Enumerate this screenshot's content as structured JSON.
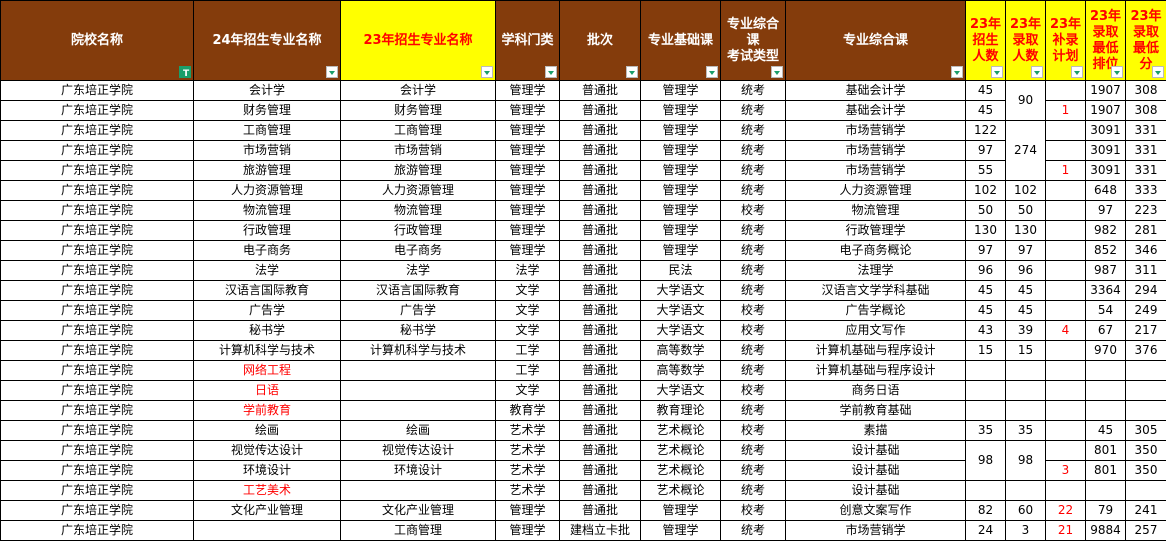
{
  "colors": {
    "header_brown": "#843C0C",
    "header_yellow": "#FFFF00",
    "highlight_red": "#FF0000",
    "filter_green": "#1A9E6A"
  },
  "headers": [
    {
      "label": "院校名称",
      "yellow": false,
      "filter_active": true
    },
    {
      "label": "24年招生专业名称",
      "yellow": false
    },
    {
      "label": "23年招生专业名称",
      "yellow": true
    },
    {
      "label": "学科门类",
      "yellow": false
    },
    {
      "label": "批次",
      "yellow": false
    },
    {
      "label": "专业基础课",
      "yellow": false
    },
    {
      "label": "专业综合课\n考试类型",
      "yellow": false
    },
    {
      "label": "专业综合课",
      "yellow": false
    },
    {
      "label": "23年\n招生\n人数",
      "yellow": true
    },
    {
      "label": "23年\n录取\n人数",
      "yellow": true
    },
    {
      "label": "23年\n补录\n计划",
      "yellow": true
    },
    {
      "label": "23年\n录取\n最低\n排位",
      "yellow": true
    },
    {
      "label": "23年\n录取\n最低\n分",
      "yellow": true
    }
  ],
  "rows": [
    [
      "广东培正学院",
      "会计学",
      "会计学",
      "管理学",
      "普通批",
      "管理学",
      "统考",
      "基础会计学",
      "45",
      "90",
      "",
      "1907",
      "308"
    ],
    [
      "广东培正学院",
      "财务管理",
      "财务管理",
      "管理学",
      "普通批",
      "管理学",
      "统考",
      "基础会计学",
      "45",
      "",
      "1",
      "1907",
      "308"
    ],
    [
      "广东培正学院",
      "工商管理",
      "工商管理",
      "管理学",
      "普通批",
      "管理学",
      "统考",
      "市场营销学",
      "122",
      "274",
      "",
      "3091",
      "331"
    ],
    [
      "广东培正学院",
      "市场营销",
      "市场营销",
      "管理学",
      "普通批",
      "管理学",
      "统考",
      "市场营销学",
      "97",
      "",
      "",
      "3091",
      "331"
    ],
    [
      "广东培正学院",
      "旅游管理",
      "旅游管理",
      "管理学",
      "普通批",
      "管理学",
      "统考",
      "市场营销学",
      "55",
      "",
      "1",
      "3091",
      "331"
    ],
    [
      "广东培正学院",
      "人力资源管理",
      "人力资源管理",
      "管理学",
      "普通批",
      "管理学",
      "统考",
      "人力资源管理",
      "102",
      "102",
      "",
      "648",
      "333"
    ],
    [
      "广东培正学院",
      "物流管理",
      "物流管理",
      "管理学",
      "普通批",
      "管理学",
      "校考",
      "物流管理",
      "50",
      "50",
      "",
      "97",
      "223"
    ],
    [
      "广东培正学院",
      "行政管理",
      "行政管理",
      "管理学",
      "普通批",
      "管理学",
      "统考",
      "行政管理学",
      "130",
      "130",
      "",
      "982",
      "281"
    ],
    [
      "广东培正学院",
      "电子商务",
      "电子商务",
      "管理学",
      "普通批",
      "管理学",
      "统考",
      "电子商务概论",
      "97",
      "97",
      "",
      "852",
      "346"
    ],
    [
      "广东培正学院",
      "法学",
      "法学",
      "法学",
      "普通批",
      "民法",
      "统考",
      "法理学",
      "96",
      "96",
      "",
      "987",
      "311"
    ],
    [
      "广东培正学院",
      "汉语言国际教育",
      "汉语言国际教育",
      "文学",
      "普通批",
      "大学语文",
      "统考",
      "汉语言文学学科基础",
      "45",
      "45",
      "",
      "3364",
      "294"
    ],
    [
      "广东培正学院",
      "广告学",
      "广告学",
      "文学",
      "普通批",
      "大学语文",
      "校考",
      "广告学概论",
      "45",
      "45",
      "",
      "54",
      "249"
    ],
    [
      "广东培正学院",
      "秘书学",
      "秘书学",
      "文学",
      "普通批",
      "大学语文",
      "校考",
      "应用文写作",
      "43",
      "39",
      "4",
      "67",
      "217"
    ],
    [
      "广东培正学院",
      "计算机科学与技术",
      "计算机科学与技术",
      "工学",
      "普通批",
      "高等数学",
      "统考",
      "计算机基础与程序设计",
      "15",
      "15",
      "",
      "970",
      "376"
    ],
    [
      "广东培正学院",
      "网络工程",
      "",
      "工学",
      "普通批",
      "高等数学",
      "统考",
      "计算机基础与程序设计",
      "",
      "",
      "",
      "",
      ""
    ],
    [
      "广东培正学院",
      "日语",
      "",
      "文学",
      "普通批",
      "大学语文",
      "校考",
      "商务日语",
      "",
      "",
      "",
      "",
      ""
    ],
    [
      "广东培正学院",
      "学前教育",
      "",
      "教育学",
      "普通批",
      "教育理论",
      "统考",
      "学前教育基础",
      "",
      "",
      "",
      "",
      ""
    ],
    [
      "广东培正学院",
      "绘画",
      "绘画",
      "艺术学",
      "普通批",
      "艺术概论",
      "校考",
      "素描",
      "35",
      "35",
      "",
      "45",
      "305"
    ],
    [
      "广东培正学院",
      "视觉传达设计",
      "视觉传达设计",
      "艺术学",
      "普通批",
      "艺术概论",
      "统考",
      "设计基础",
      "98",
      "98",
      "",
      "801",
      "350"
    ],
    [
      "广东培正学院",
      "环境设计",
      "环境设计",
      "艺术学",
      "普通批",
      "艺术概论",
      "统考",
      "设计基础",
      "",
      "",
      "3",
      "801",
      "350"
    ],
    [
      "广东培正学院",
      "工艺美术",
      "",
      "艺术学",
      "普通批",
      "艺术概论",
      "统考",
      "设计基础",
      "",
      "",
      "",
      "",
      ""
    ],
    [
      "广东培正学院",
      "文化产业管理",
      "文化产业管理",
      "管理学",
      "普通批",
      "管理学",
      "校考",
      "创意文案写作",
      "82",
      "60",
      "22",
      "79",
      "241"
    ],
    [
      "广东培正学院",
      "",
      "工商管理",
      "管理学",
      "建档立卡批",
      "管理学",
      "统考",
      "市场营销学",
      "24",
      "3",
      "21",
      "9884",
      "257"
    ]
  ]
}
